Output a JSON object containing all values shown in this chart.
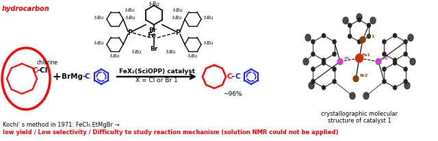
{
  "background_color": "#ffffff",
  "hydrocarbon_label": "hydrocarbon",
  "red_color": "#ff0000",
  "blue_color": "#1a1aff",
  "black_color": "#000000",
  "catalyst_label": "FeX₂(SciOPP) catalyst",
  "x_label": "X = Cl or Br 1",
  "yield_label": "~96%",
  "kochi_line1": "Kochi’ s method in 1971: FeCl₃.EtMgBr →",
  "kochi_line2": "low yield / Low selectivity / Difficulty to study reaction mechanism (solution NMR could not be applied)",
  "cryst_line1": "crystallographic molecular",
  "cryst_line2": "structure of catalyst 1",
  "fig_width": 6.4,
  "fig_height": 2.06,
  "dpi": 100
}
